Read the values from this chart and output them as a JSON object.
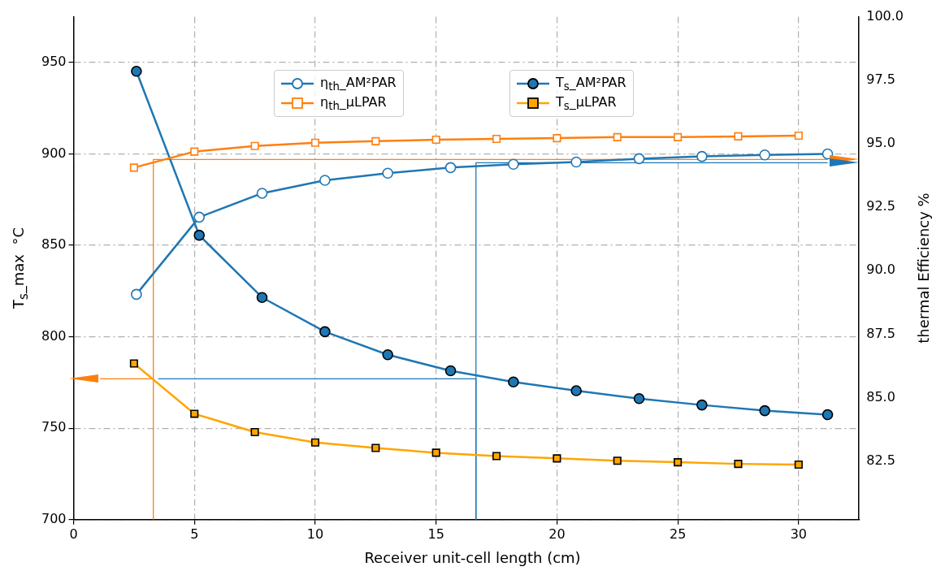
{
  "chart_data": {
    "type": "line",
    "xlabel": "Receiver unit-cell length (cm)",
    "ylabel": "T$_{s}$_max  °C",
    "y2label": "thermal Efficiency %",
    "xlim": [
      0,
      32.5
    ],
    "xticks": [
      0,
      5,
      10,
      15,
      20,
      25,
      30
    ],
    "ylim": [
      700,
      975
    ],
    "yticks": [
      700,
      750,
      800,
      850,
      900,
      950
    ],
    "y2lim": [
      80.2,
      100
    ],
    "y2ticks": [
      {
        "value": 82.5,
        "label": "82.5"
      },
      {
        "value": 85,
        "label": "85.0"
      },
      {
        "value": 87.5,
        "label": "87.5"
      },
      {
        "value": 90,
        "label": "90.0"
      },
      {
        "value": 92.5,
        "label": "92.5"
      },
      {
        "value": 95,
        "label": "95.0"
      },
      {
        "value": 97.5,
        "label": "97.5"
      },
      {
        "value": 100,
        "label": "100.0"
      }
    ],
    "grid": true,
    "legend": "top",
    "line_style": "solid",
    "series": [
      {
        "name": "η$_{th}$_AM²PAR",
        "color": "#1f77b4",
        "axis": "y2",
        "marker": "circle",
        "x": [
          2.6,
          5.2,
          7.8,
          10.4,
          13,
          15.6,
          18.2,
          20.8,
          23.4,
          26,
          28.6,
          31.2
        ],
        "values": [
          89.07,
          92.11,
          93.05,
          93.56,
          93.84,
          94.06,
          94.19,
          94.28,
          94.41,
          94.5,
          94.56,
          94.6
        ]
      },
      {
        "name": "η$_{th}$_µLPAR",
        "color": "#ff7f0e",
        "axis": "y2",
        "marker": "square",
        "x": [
          2.5,
          5,
          7.5,
          10,
          12.5,
          15,
          17.5,
          20,
          22.5,
          25,
          27.5,
          30
        ],
        "values": [
          94.06,
          94.69,
          94.91,
          95.04,
          95.1,
          95.16,
          95.19,
          95.22,
          95.26,
          95.26,
          95.29,
          95.32
        ]
      },
      {
        "name": "T$_{s}$_AM²PAR",
        "color": "#1f77b4",
        "marker": "circle",
        "x": [
          2.6,
          5.2,
          7.8,
          10.4,
          13,
          15.6,
          18.2,
          20.8,
          23.4,
          26,
          28.6,
          31.2
        ],
        "values": [
          945.2,
          855.5,
          821.5,
          802.8,
          790.2,
          781.4,
          775.3,
          770.5,
          766.2,
          762.7,
          759.6,
          757.4
        ]
      },
      {
        "name": "T$_{s}$_µLPAR",
        "color": "#ffa500",
        "marker": "square",
        "x": [
          2.5,
          5,
          7.5,
          10,
          12.5,
          15,
          17.5,
          20,
          22.5,
          25,
          27.5,
          30
        ],
        "values": [
          785.4,
          757.9,
          747.9,
          742.2,
          739.2,
          736.6,
          734.8,
          733.5,
          732.2,
          731.4,
          730.5,
          730.1
        ]
      },
      {
        "color": "#ff7f0e",
        "axis": "y2",
        "marker": "none",
        "x": [
          3.3,
          3.3,
          31.2
        ],
        "values": [
          80.2,
          94.38,
          94.38
        ]
      },
      {
        "color": "#ff7f0e",
        "marker": "none",
        "x": [
          3.3,
          1.1
        ],
        "values": [
          777,
          777
        ]
      },
      {
        "color": "#1f77b4",
        "marker": "none",
        "x": [
          3.5,
          16.65,
          16.65
        ],
        "values": [
          777,
          777,
          700
        ]
      },
      {
        "color": "#1f77b4",
        "axis": "y2",
        "marker": "none",
        "x": [
          16.65,
          16.65,
          31.2
        ],
        "values": [
          80.2,
          94.25,
          94.25
        ]
      }
    ]
  }
}
